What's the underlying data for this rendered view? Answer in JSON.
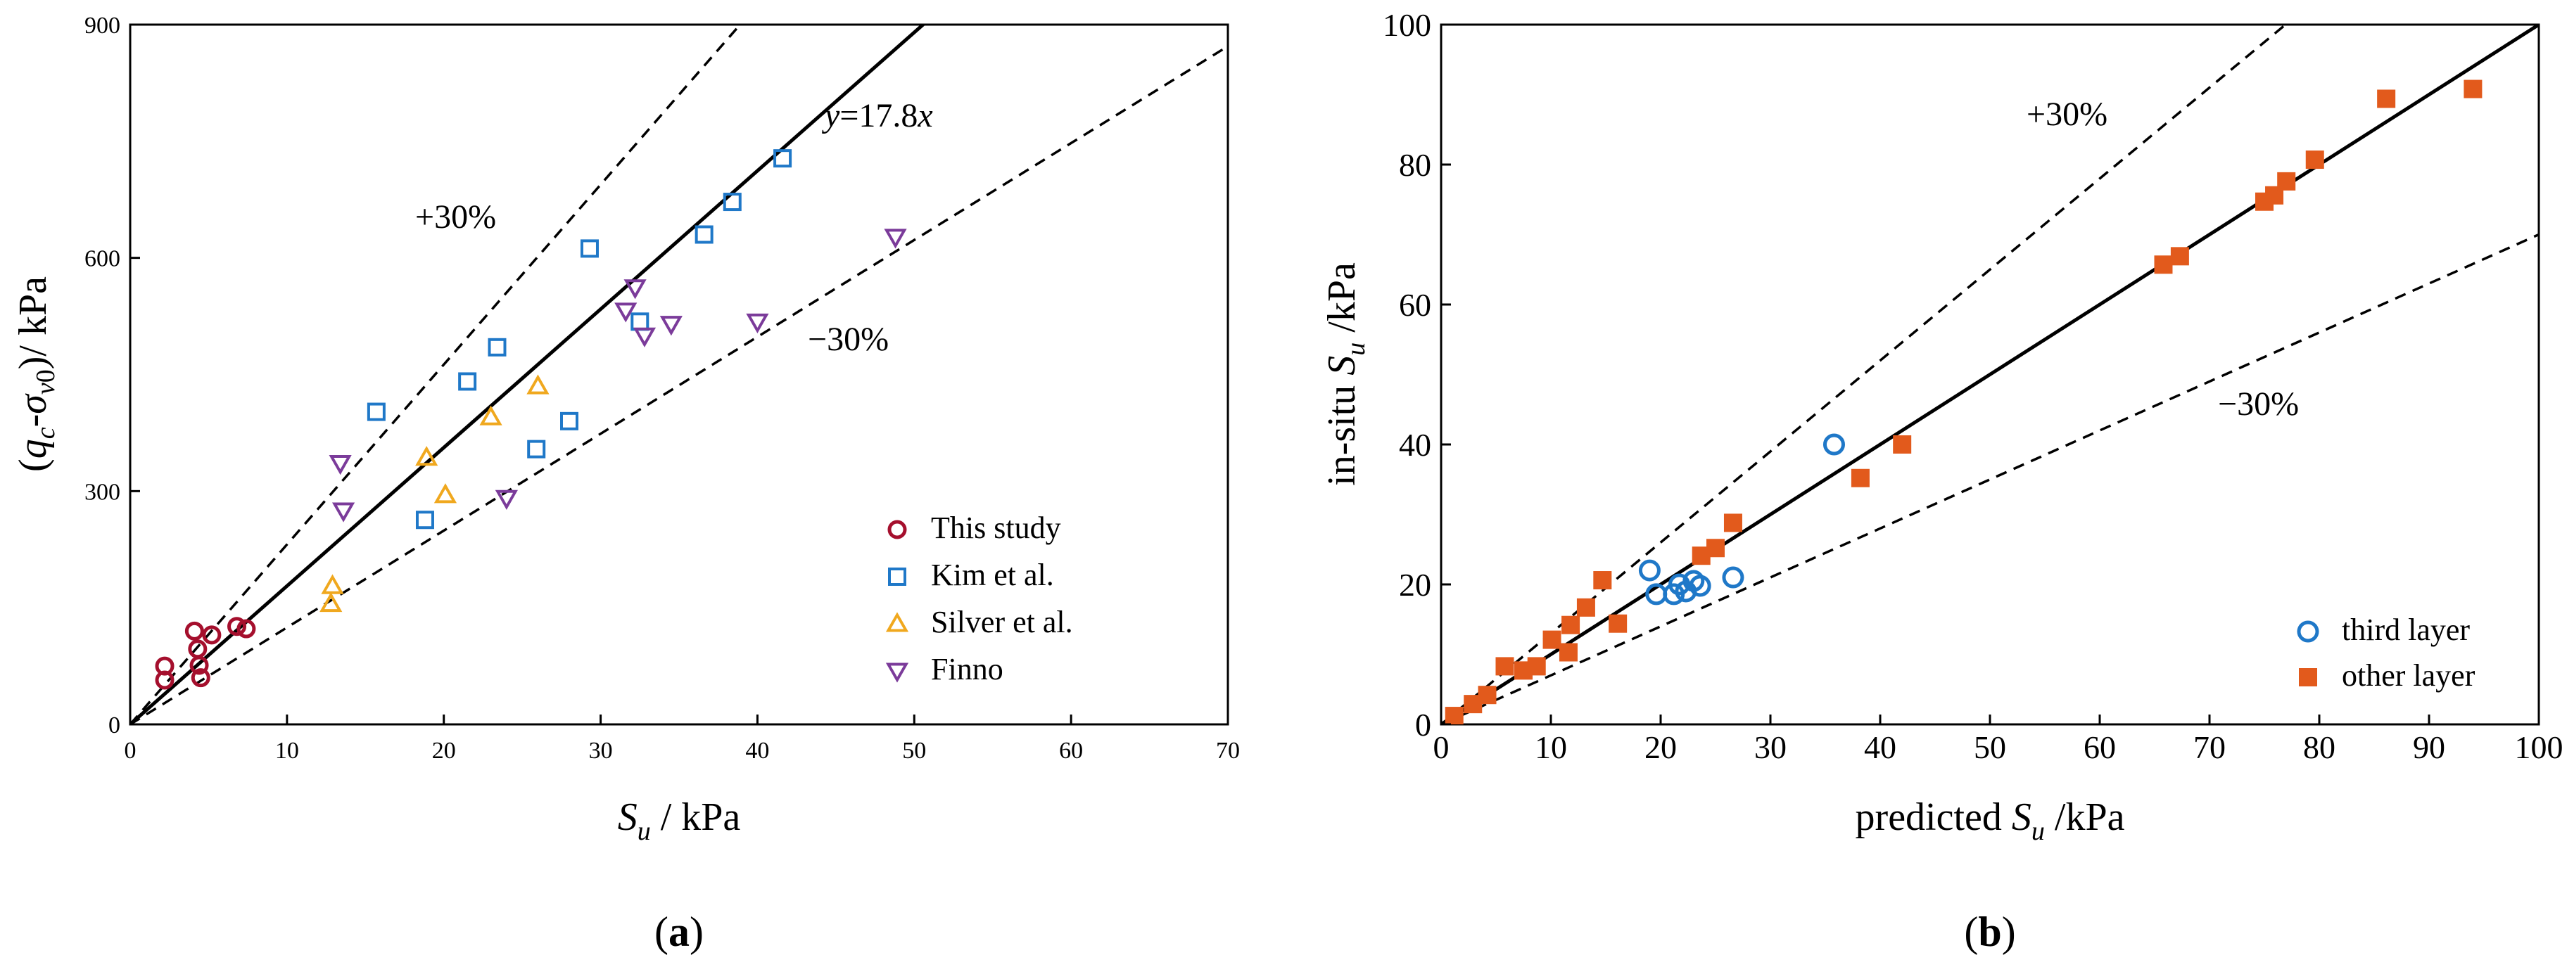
{
  "chart_data": [
    {
      "panel": "a",
      "type": "scatter",
      "panel_label": "(a)",
      "xlabel": "S_u / kPa",
      "ylabel": "(q_c-σ_v0)/ kPa",
      "xlim": [
        0,
        70
      ],
      "ylim": [
        0,
        900
      ],
      "xticks": [
        0,
        10,
        20,
        30,
        40,
        50,
        60,
        70
      ],
      "yticks": [
        0,
        300,
        600,
        900
      ],
      "lines": [
        {
          "name": "y=17.8x",
          "label": "y=17.8x",
          "slope": 17.8,
          "style": "solid"
        },
        {
          "name": "+30%",
          "label": "+30%",
          "slope": 23.14,
          "style": "dashed"
        },
        {
          "name": "−30%",
          "label": "−30%",
          "slope": 12.46,
          "style": "dashed"
        }
      ],
      "legend_position": "bottom-right",
      "series": [
        {
          "name": "This study",
          "marker": "circle",
          "color": "#a50f2d",
          "points": [
            [
              2.2,
              57
            ],
            [
              2.2,
              75
            ],
            [
              4.1,
              120
            ],
            [
              4.3,
              97
            ],
            [
              4.4,
              76
            ],
            [
              4.5,
              60
            ],
            [
              5.2,
              115
            ],
            [
              6.8,
              126
            ],
            [
              7.4,
              123
            ]
          ]
        },
        {
          "name": "Kim et al.",
          "marker": "square",
          "color": "#1f78c8",
          "points": [
            [
              15.7,
              402
            ],
            [
              18.8,
              263
            ],
            [
              21.5,
              441
            ],
            [
              23.4,
              485
            ],
            [
              25.9,
              354
            ],
            [
              28.0,
              390
            ],
            [
              29.3,
              612
            ],
            [
              32.5,
              518
            ],
            [
              36.6,
              630
            ],
            [
              38.4,
              672
            ],
            [
              41.6,
              728
            ]
          ]
        },
        {
          "name": "Silver et al.",
          "marker": "triangle-up",
          "color": "#f0a81e",
          "points": [
            [
              12.8,
              155
            ],
            [
              12.9,
              178
            ],
            [
              18.9,
              343
            ],
            [
              20.1,
              295
            ],
            [
              23.0,
              395
            ],
            [
              26.0,
              435
            ]
          ]
        },
        {
          "name": "Finno",
          "marker": "triangle-down",
          "color": "#7b3b9a",
          "points": [
            [
              13.4,
              336
            ],
            [
              13.6,
              275
            ],
            [
              24.0,
              291
            ],
            [
              31.6,
              532
            ],
            [
              32.2,
              562
            ],
            [
              32.8,
              500
            ],
            [
              34.5,
              515
            ],
            [
              40.0,
              518
            ],
            [
              48.8,
              627
            ]
          ]
        }
      ]
    },
    {
      "panel": "b",
      "type": "scatter",
      "panel_label": "(b)",
      "xlabel": "predicted S_u /kPa",
      "ylabel": "in-situ S_u /kPa",
      "xlim": [
        0,
        100
      ],
      "ylim": [
        0,
        100
      ],
      "xticks": [
        0,
        10,
        20,
        30,
        40,
        50,
        60,
        70,
        80,
        90,
        100
      ],
      "yticks": [
        0,
        20,
        40,
        60,
        80,
        100
      ],
      "lines": [
        {
          "name": "1:1",
          "slope": 1.0,
          "style": "solid"
        },
        {
          "name": "+30%",
          "label": "+30%",
          "slope": 1.3,
          "style": "dashed"
        },
        {
          "name": "−30%",
          "label": "−30%",
          "slope": 0.7,
          "style": "dashed"
        }
      ],
      "legend_position": "bottom-right",
      "series": [
        {
          "name": "third layer",
          "marker": "circle",
          "color": "#1f78c8",
          "points": [
            [
              19.0,
              22.0
            ],
            [
              19.6,
              18.6
            ],
            [
              21.2,
              18.6
            ],
            [
              21.7,
              20.0
            ],
            [
              22.3,
              19.0
            ],
            [
              23.0,
              20.5
            ],
            [
              23.6,
              19.8
            ],
            [
              26.6,
              21.0
            ],
            [
              35.8,
              40.0
            ]
          ]
        },
        {
          "name": "other layer",
          "marker": "square",
          "color": "#e25a1c",
          "points": [
            [
              1.2,
              1.2
            ],
            [
              2.9,
              2.9
            ],
            [
              4.2,
              4.2
            ],
            [
              5.8,
              8.3
            ],
            [
              7.5,
              7.7
            ],
            [
              8.7,
              8.3
            ],
            [
              10.1,
              12.1
            ],
            [
              11.6,
              10.3
            ],
            [
              11.8,
              14.2
            ],
            [
              13.2,
              16.7
            ],
            [
              14.7,
              20.6
            ],
            [
              16.1,
              14.4
            ],
            [
              23.7,
              24.1
            ],
            [
              25.0,
              25.2
            ],
            [
              26.6,
              28.8
            ],
            [
              38.2,
              35.2
            ],
            [
              42.0,
              40.0
            ],
            [
              65.8,
              65.7
            ],
            [
              67.3,
              66.9
            ],
            [
              75.0,
              74.7
            ],
            [
              75.9,
              75.6
            ],
            [
              77.0,
              77.6
            ],
            [
              79.6,
              80.7
            ],
            [
              86.1,
              89.4
            ],
            [
              94.0,
              90.8
            ]
          ]
        }
      ]
    }
  ]
}
